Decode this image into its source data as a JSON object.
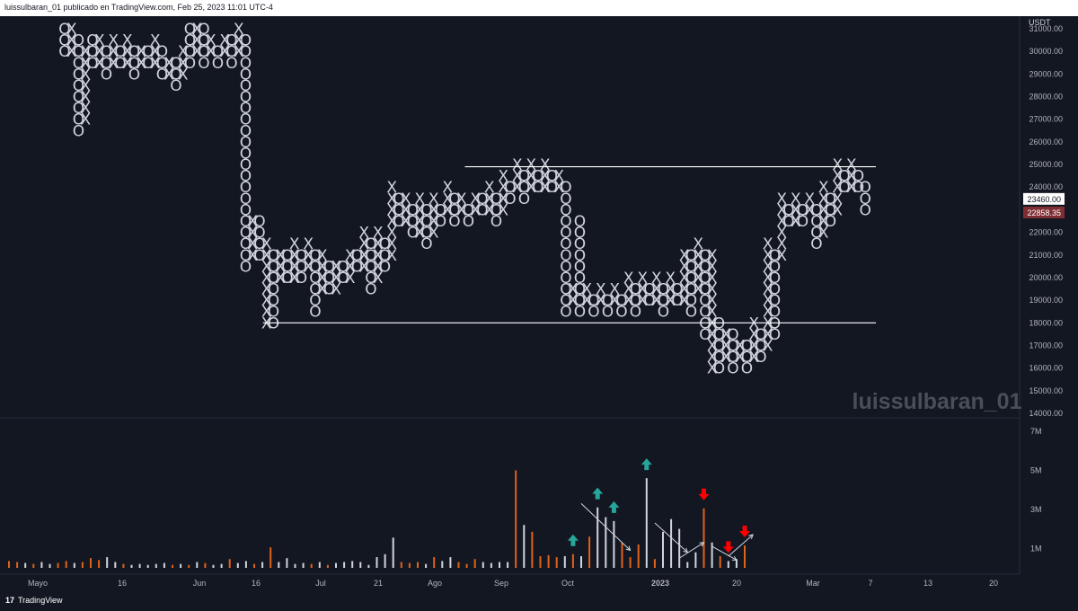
{
  "header": {
    "text": "luissulbaran_01 publicado en TradingView.com, Feb 25, 2023 11:01 UTC-4"
  },
  "footer": {
    "logo_mark": "17",
    "brand": "TradingView"
  },
  "watermark": "luissulbaran_01",
  "colors": {
    "background": "#131722",
    "text": "#d1d4dc",
    "grid_line": "#ffffff",
    "vol_orange": "#e0621b",
    "vol_white": "#d1d4dc",
    "arrow_up": "#26a69a",
    "arrow_down": "#ff0000"
  },
  "chart_data": {
    "type": "point_and_figure",
    "price_axis": {
      "currency": "USDT",
      "range": [
        14000,
        31000
      ],
      "ticks": [
        "31000.00",
        "30000.00",
        "29000.00",
        "28000.00",
        "27000.00",
        "26000.00",
        "25000.00",
        "24000.00",
        "23000.00",
        "22000.00",
        "21000.00",
        "20000.00",
        "19000.00",
        "18000.00",
        "17000.00",
        "16000.00",
        "15000.00",
        "14000.00"
      ],
      "badges": [
        {
          "text": "23460.00",
          "value": 23460,
          "bg": "#ffffff",
          "fg": "#131722"
        },
        {
          "text": "22858.35",
          "value": 22858.35,
          "bg": "#7f2e34",
          "fg": "#ffffff"
        }
      ]
    },
    "time_axis": {
      "labels": [
        "Mayo",
        "16",
        "Jun",
        "16",
        "Jul",
        "21",
        "Ago",
        "Sep",
        "Oct",
        "2023",
        "20",
        "Mar",
        "7",
        "13",
        "20"
      ]
    },
    "box_size": 500,
    "columns": [
      {
        "type": "O",
        "high": 31000,
        "low": 30000
      },
      {
        "type": "X",
        "high": 31000,
        "low": 30000
      },
      {
        "type": "O",
        "high": 30500,
        "low": 26500
      },
      {
        "type": "X",
        "high": 30000,
        "low": 27000
      },
      {
        "type": "O",
        "high": 30500,
        "low": 29500
      },
      {
        "type": "X",
        "high": 30500,
        "low": 29500
      },
      {
        "type": "O",
        "high": 30000,
        "low": 29000
      },
      {
        "type": "X",
        "high": 30500,
        "low": 29500
      },
      {
        "type": "O",
        "high": 30000,
        "low": 29500
      },
      {
        "type": "X",
        "high": 30500,
        "low": 29500
      },
      {
        "type": "O",
        "high": 30000,
        "low": 29000
      },
      {
        "type": "X",
        "high": 30000,
        "low": 29500
      },
      {
        "type": "O",
        "high": 30000,
        "low": 29500
      },
      {
        "type": "X",
        "high": 30500,
        "low": 29500
      },
      {
        "type": "O",
        "high": 30000,
        "low": 29000
      },
      {
        "type": "X",
        "high": 29500,
        "low": 29000
      },
      {
        "type": "O",
        "high": 29500,
        "low": 28500
      },
      {
        "type": "X",
        "high": 30000,
        "low": 29000
      },
      {
        "type": "O",
        "high": 31000,
        "low": 29500
      },
      {
        "type": "X",
        "high": 31000,
        "low": 30000
      },
      {
        "type": "O",
        "high": 31000,
        "low": 29500
      },
      {
        "type": "X",
        "high": 30500,
        "low": 30000
      },
      {
        "type": "O",
        "high": 30000,
        "low": 29500
      },
      {
        "type": "X",
        "high": 30500,
        "low": 30000
      },
      {
        "type": "O",
        "high": 30500,
        "low": 29500
      },
      {
        "type": "X",
        "high": 31000,
        "low": 30000
      },
      {
        "type": "O",
        "high": 30500,
        "low": 20500
      },
      {
        "type": "X",
        "high": 22500,
        "low": 21000
      },
      {
        "type": "O",
        "high": 22500,
        "low": 21000
      },
      {
        "type": "X",
        "high": 21500,
        "low": 18000
      },
      {
        "type": "O",
        "high": 21000,
        "low": 18000
      },
      {
        "type": "X",
        "high": 21000,
        "low": 20000
      },
      {
        "type": "O",
        "high": 21000,
        "low": 20000
      },
      {
        "type": "X",
        "high": 21500,
        "low": 20000
      },
      {
        "type": "O",
        "high": 21000,
        "low": 20000
      },
      {
        "type": "X",
        "high": 21500,
        "low": 20500
      },
      {
        "type": "O",
        "high": 21000,
        "low": 18500
      },
      {
        "type": "X",
        "high": 21000,
        "low": 19500
      },
      {
        "type": "O",
        "high": 20500,
        "low": 19500
      },
      {
        "type": "X",
        "high": 20500,
        "low": 19500
      },
      {
        "type": "O",
        "high": 20500,
        "low": 20000
      },
      {
        "type": "X",
        "high": 21000,
        "low": 20000
      },
      {
        "type": "O",
        "high": 21000,
        "low": 20500
      },
      {
        "type": "X",
        "high": 22000,
        "low": 20500
      },
      {
        "type": "O",
        "high": 21500,
        "low": 19500
      },
      {
        "type": "X",
        "high": 22000,
        "low": 20000
      },
      {
        "type": "O",
        "high": 21500,
        "low": 20500
      },
      {
        "type": "X",
        "high": 24000,
        "low": 21000
      },
      {
        "type": "O",
        "high": 23500,
        "low": 22500
      },
      {
        "type": "X",
        "high": 23500,
        "low": 22500
      },
      {
        "type": "O",
        "high": 23000,
        "low": 22000
      },
      {
        "type": "X",
        "high": 23500,
        "low": 22000
      },
      {
        "type": "O",
        "high": 23000,
        "low": 21500
      },
      {
        "type": "X",
        "high": 23500,
        "low": 22000
      },
      {
        "type": "O",
        "high": 23000,
        "low": 22500
      },
      {
        "type": "X",
        "high": 24000,
        "low": 23000
      },
      {
        "type": "O",
        "high": 23500,
        "low": 22500
      },
      {
        "type": "X",
        "high": 23500,
        "low": 23000
      },
      {
        "type": "O",
        "high": 23000,
        "low": 22500
      },
      {
        "type": "X",
        "high": 23500,
        "low": 23000
      },
      {
        "type": "O",
        "high": 23500,
        "low": 23000
      },
      {
        "type": "X",
        "high": 24000,
        "low": 23000
      },
      {
        "type": "O",
        "high": 23500,
        "low": 22500
      },
      {
        "type": "X",
        "high": 24500,
        "low": 23000
      },
      {
        "type": "O",
        "high": 24000,
        "low": 23500
      },
      {
        "type": "X",
        "high": 25000,
        "low": 24000
      },
      {
        "type": "O",
        "high": 24500,
        "low": 23500
      },
      {
        "type": "X",
        "high": 25000,
        "low": 24000
      },
      {
        "type": "O",
        "high": 24500,
        "low": 24000
      },
      {
        "type": "X",
        "high": 25000,
        "low": 24000
      },
      {
        "type": "O",
        "high": 24500,
        "low": 24000
      },
      {
        "type": "X",
        "high": 24500,
        "low": 24000
      },
      {
        "type": "O",
        "high": 24000,
        "low": 18500
      },
      {
        "type": "X",
        "high": 19500,
        "low": 19000
      },
      {
        "type": "O",
        "high": 22500,
        "low": 18500
      },
      {
        "type": "X",
        "high": 19500,
        "low": 19000
      },
      {
        "type": "O",
        "high": 19000,
        "low": 18500
      },
      {
        "type": "X",
        "high": 19500,
        "low": 19000
      },
      {
        "type": "O",
        "high": 19000,
        "low": 18500
      },
      {
        "type": "X",
        "high": 19500,
        "low": 19000
      },
      {
        "type": "O",
        "high": 19000,
        "low": 18500
      },
      {
        "type": "X",
        "high": 20000,
        "low": 19000
      },
      {
        "type": "O",
        "high": 19500,
        "low": 18500
      },
      {
        "type": "X",
        "high": 20000,
        "low": 19000
      },
      {
        "type": "O",
        "high": 19500,
        "low": 19000
      },
      {
        "type": "X",
        "high": 20000,
        "low": 19000
      },
      {
        "type": "O",
        "high": 19500,
        "low": 18500
      },
      {
        "type": "X",
        "high": 20000,
        "low": 19000
      },
      {
        "type": "O",
        "high": 19500,
        "low": 19000
      },
      {
        "type": "X",
        "high": 21000,
        "low": 19000
      },
      {
        "type": "O",
        "high": 21000,
        "low": 18500
      },
      {
        "type": "X",
        "high": 21500,
        "low": 19500
      },
      {
        "type": "O",
        "high": 21000,
        "low": 17500
      },
      {
        "type": "X",
        "high": 21000,
        "low": 16000
      },
      {
        "type": "O",
        "high": 18000,
        "low": 16000
      },
      {
        "type": "X",
        "high": 17500,
        "low": 16500
      },
      {
        "type": "O",
        "high": 17500,
        "low": 16000
      },
      {
        "type": "X",
        "high": 17000,
        "low": 16500
      },
      {
        "type": "O",
        "high": 17000,
        "low": 16000
      },
      {
        "type": "X",
        "high": 18000,
        "low": 16500
      },
      {
        "type": "O",
        "high": 17500,
        "low": 16500
      },
      {
        "type": "X",
        "high": 21500,
        "low": 17000
      },
      {
        "type": "O",
        "high": 21000,
        "low": 17500
      },
      {
        "type": "X",
        "high": 23500,
        "low": 21000
      },
      {
        "type": "O",
        "high": 23000,
        "low": 22500
      },
      {
        "type": "X",
        "high": 23500,
        "low": 22500
      },
      {
        "type": "O",
        "high": 23000,
        "low": 22500
      },
      {
        "type": "X",
        "high": 23500,
        "low": 23000
      },
      {
        "type": "O",
        "high": 23000,
        "low": 21500
      },
      {
        "type": "X",
        "high": 24000,
        "low": 22000
      },
      {
        "type": "O",
        "high": 23500,
        "low": 22500
      },
      {
        "type": "X",
        "high": 25000,
        "low": 23000
      },
      {
        "type": "O",
        "high": 24500,
        "low": 24000
      },
      {
        "type": "X",
        "high": 25000,
        "low": 24000
      },
      {
        "type": "O",
        "high": 24500,
        "low": 24000
      },
      {
        "type": "O",
        "high": 24000,
        "low": 23000
      }
    ],
    "horizontal_lines": [
      {
        "price": 24900,
        "from_col": 58,
        "to_col": 116
      },
      {
        "price": 18000,
        "from_col": 29,
        "to_col": 116
      }
    ],
    "volume_axis": {
      "range": [
        0,
        7000000
      ],
      "ticks": [
        {
          "label": "7M",
          "value": 7000000
        },
        {
          "label": "5M",
          "value": 5000000
        },
        {
          "label": "3M",
          "value": 3000000
        },
        {
          "label": "1M",
          "value": 1000000
        }
      ]
    },
    "volume": {
      "values": [
        0.35,
        0.3,
        0.25,
        0.2,
        0.3,
        0.2,
        0.25,
        0.35,
        0.25,
        0.3,
        0.5,
        0.4,
        0.55,
        0.3,
        0.2,
        0.15,
        0.2,
        0.15,
        0.2,
        0.25,
        0.15,
        0.2,
        0.15,
        0.3,
        0.25,
        0.15,
        0.2,
        0.45,
        0.25,
        0.35,
        0.2,
        0.3,
        1.05,
        0.3,
        0.5,
        0.2,
        0.25,
        0.2,
        0.3,
        0.15,
        0.25,
        0.3,
        0.35,
        0.3,
        0.15,
        0.55,
        0.7,
        1.55,
        0.3,
        0.25,
        0.3,
        0.2,
        0.55,
        0.35,
        0.55,
        0.3,
        0.2,
        0.45,
        0.3,
        0.25,
        0.3,
        0.3,
        5.0,
        2.2,
        1.85,
        0.6,
        0.65,
        0.55,
        0.6,
        0.7,
        0.6,
        1.6,
        3.1,
        2.6,
        2.4,
        1.3,
        0.55,
        1.2,
        4.6,
        0.45,
        1.85,
        2.5,
        2.0,
        0.3,
        0.8,
        3.05,
        1.3,
        0.6,
        0.35,
        0.45,
        1.15
      ],
      "colors": [
        "o",
        "o",
        "w",
        "o",
        "w",
        "w",
        "o",
        "o",
        "w",
        "o",
        "o",
        "o",
        "w",
        "w",
        "o",
        "w",
        "w",
        "w",
        "w",
        "w",
        "o",
        "w",
        "o",
        "w",
        "o",
        "w",
        "w",
        "o",
        "w",
        "w",
        "o",
        "w",
        "o",
        "w",
        "w",
        "w",
        "w",
        "o",
        "w",
        "o",
        "w",
        "w",
        "w",
        "w",
        "w",
        "w",
        "w",
        "w",
        "o",
        "o",
        "o",
        "w",
        "o",
        "w",
        "w",
        "o",
        "o",
        "o",
        "w",
        "w",
        "w",
        "w",
        "o",
        "w",
        "o",
        "o",
        "o",
        "o",
        "w",
        "o",
        "w",
        "o",
        "w",
        "w",
        "w",
        "o",
        "o",
        "o",
        "w",
        "o",
        "w",
        "w",
        "w",
        "w",
        "w",
        "o",
        "w",
        "o",
        "w",
        "w",
        "o"
      ]
    },
    "annotations": [
      {
        "type": "arrow_up",
        "color": "#26a69a",
        "bar_index": 69
      },
      {
        "type": "arrow_up",
        "color": "#26a69a",
        "bar_index": 72
      },
      {
        "type": "arrow_up",
        "color": "#26a69a",
        "bar_index": 74
      },
      {
        "type": "arrow_up",
        "color": "#26a69a",
        "bar_index": 78
      },
      {
        "type": "arrow_down",
        "color": "#ff0000",
        "bar_index": 85
      },
      {
        "type": "arrow_down",
        "color": "#ff0000",
        "bar_index": 88
      },
      {
        "type": "arrow_down",
        "color": "#ff0000",
        "bar_index": 90
      }
    ],
    "trend_lines": [
      {
        "from_bar": 70,
        "from_val": 3.3,
        "to_bar": 76,
        "to_val": 0.9
      },
      {
        "from_bar": 79,
        "from_val": 2.3,
        "to_bar": 83,
        "to_val": 0.8
      },
      {
        "from_bar": 82,
        "from_val": 0.5,
        "to_bar": 85,
        "to_val": 1.3
      },
      {
        "from_bar": 86,
        "from_val": 1.1,
        "to_bar": 89,
        "to_val": 0.4
      },
      {
        "from_bar": 88,
        "from_val": 0.6,
        "to_bar": 91,
        "to_val": 1.7
      }
    ]
  }
}
